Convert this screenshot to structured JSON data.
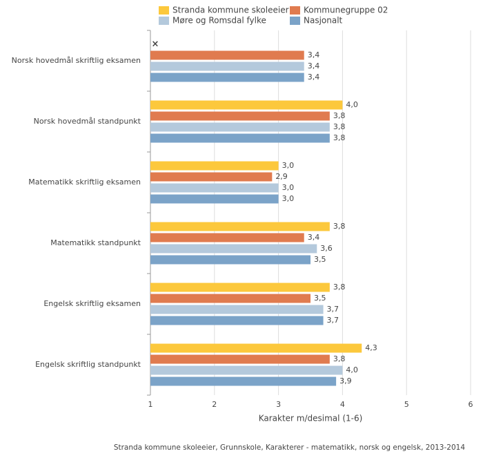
{
  "chart_data": {
    "type": "bar",
    "orientation": "horizontal",
    "categories": [
      "Norsk hovedmål skriftlig eksamen",
      "Norsk hovedmål standpunkt",
      "Matematikk skriftlig eksamen",
      "Matematikk standpunkt",
      "Engelsk skriftlig eksamen",
      "Engelsk skriftlig standpunkt"
    ],
    "series": [
      {
        "name": "Stranda kommune skoleeier",
        "color": "#fcc83c",
        "values": [
          null,
          4.0,
          3.0,
          3.8,
          3.8,
          4.3
        ],
        "value_labels": [
          null,
          "4,0",
          "3,0",
          "3,8",
          "3,8",
          "4,3"
        ]
      },
      {
        "name": "Kommunegruppe 02",
        "color": "#e07b4f",
        "values": [
          3.4,
          3.8,
          2.9,
          3.4,
          3.5,
          3.8
        ],
        "value_labels": [
          "3,4",
          "3,8",
          "2,9",
          "3,4",
          "3,5",
          "3,8"
        ]
      },
      {
        "name": "Møre og Romsdal fylke",
        "color": "#b4c9dc",
        "values": [
          3.4,
          3.8,
          3.0,
          3.6,
          3.7,
          4.0
        ],
        "value_labels": [
          "3,4",
          "3,8",
          "3,0",
          "3,6",
          "3,7",
          "4,0"
        ]
      },
      {
        "name": "Nasjonalt",
        "color": "#7ba3c8",
        "values": [
          3.4,
          3.8,
          3.0,
          3.5,
          3.7,
          3.9
        ],
        "value_labels": [
          "3,4",
          "3,8",
          "3,0",
          "3,5",
          "3,7",
          "3,9"
        ]
      }
    ],
    "xlim": [
      1,
      6
    ],
    "xticks": [
      1,
      2,
      3,
      4,
      5,
      6
    ],
    "grid": true,
    "x_label": "Karakter m/desimal (1-6)",
    "source": "Stranda kommune skoleeier, Grunnskole, Karakterer - matematikk, norsk og engelsk, 2013-2014"
  }
}
